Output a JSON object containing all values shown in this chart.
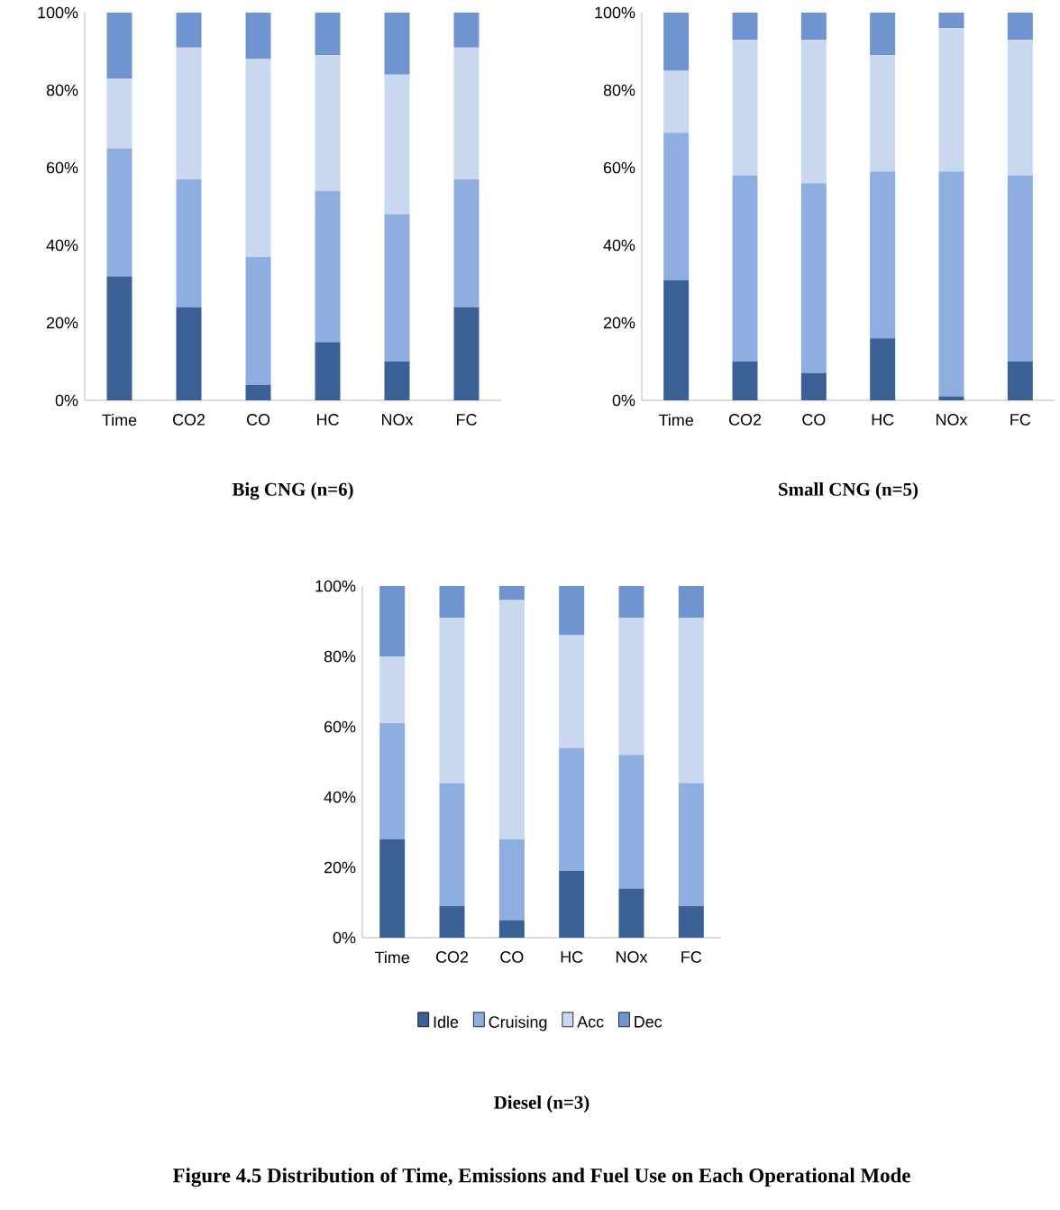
{
  "chart_data": [
    {
      "type": "bar",
      "stacked": true,
      "title": "Big CNG (n=6)",
      "categories": [
        "Time",
        "CO2",
        "CO",
        "HC",
        "NOx",
        "FC"
      ],
      "ylim": [
        0,
        100
      ],
      "yticks": [
        {
          "value": 0,
          "label": "0%"
        },
        {
          "value": 20,
          "label": "20%"
        },
        {
          "value": 40,
          "label": "40%"
        },
        {
          "value": 60,
          "label": "60%"
        },
        {
          "value": 80,
          "label": "80%"
        },
        {
          "value": 100,
          "label": "100%"
        }
      ],
      "grid": false,
      "series": [
        {
          "color": "#3b6096",
          "values": [
            32,
            24,
            4,
            15,
            10,
            24
          ]
        },
        {
          "color": "#8eaee0",
          "values": [
            33,
            33,
            33,
            39,
            38,
            33
          ]
        },
        {
          "color": "#c9d8ef",
          "values": [
            18,
            34,
            51,
            35,
            36,
            34
          ]
        },
        {
          "color": "#6f94cf",
          "values": [
            17,
            9,
            12,
            11,
            16,
            9
          ]
        }
      ]
    },
    {
      "type": "bar",
      "stacked": true,
      "title": "Small CNG (n=5)",
      "categories": [
        "Time",
        "CO2",
        "CO",
        "HC",
        "NOx",
        "FC"
      ],
      "ylim": [
        0,
        100
      ],
      "yticks": [
        {
          "value": 0,
          "label": "0%"
        },
        {
          "value": 20,
          "label": "20%"
        },
        {
          "value": 40,
          "label": "40%"
        },
        {
          "value": 60,
          "label": "60%"
        },
        {
          "value": 80,
          "label": "80%"
        },
        {
          "value": 100,
          "label": "100%"
        }
      ],
      "grid": false,
      "series": [
        {
          "color": "#3b6096",
          "values": [
            31,
            10,
            7,
            16,
            1,
            10
          ]
        },
        {
          "color": "#8eaee0",
          "values": [
            38,
            48,
            49,
            43,
            58,
            48
          ]
        },
        {
          "color": "#c9d8ef",
          "values": [
            16,
            35,
            37,
            30,
            37,
            35
          ]
        },
        {
          "color": "#6f94cf",
          "values": [
            15,
            7,
            7,
            11,
            4,
            7
          ]
        }
      ]
    },
    {
      "type": "bar",
      "stacked": true,
      "title": "Diesel (n=3)",
      "categories": [
        "Time",
        "CO2",
        "CO",
        "HC",
        "NOx",
        "FC"
      ],
      "ylim": [
        0,
        100
      ],
      "yticks": [
        {
          "value": 0,
          "label": "0%"
        },
        {
          "value": 20,
          "label": "20%"
        },
        {
          "value": 40,
          "label": "40%"
        },
        {
          "value": 60,
          "label": "60%"
        },
        {
          "value": 80,
          "label": "80%"
        },
        {
          "value": 100,
          "label": "100%"
        }
      ],
      "grid": false,
      "legend": "bottom",
      "annotations": [
        "Figure 4.5 Distribution of Time, Emissions and Fuel Use on Each Operational Mode"
      ],
      "series": [
        {
          "name": "Idle",
          "color": "#3b6096",
          "values": [
            28,
            9,
            5,
            19,
            14,
            9
          ]
        },
        {
          "name": "Cruising",
          "color": "#8eaee0",
          "values": [
            33,
            35,
            23,
            35,
            38,
            35
          ]
        },
        {
          "name": "Acc",
          "color": "#c9d8ef",
          "values": [
            19,
            47,
            68,
            32,
            39,
            47
          ]
        },
        {
          "name": "Dec",
          "color": "#6f94cf",
          "values": [
            20,
            9,
            4,
            14,
            9,
            9
          ]
        }
      ]
    }
  ]
}
